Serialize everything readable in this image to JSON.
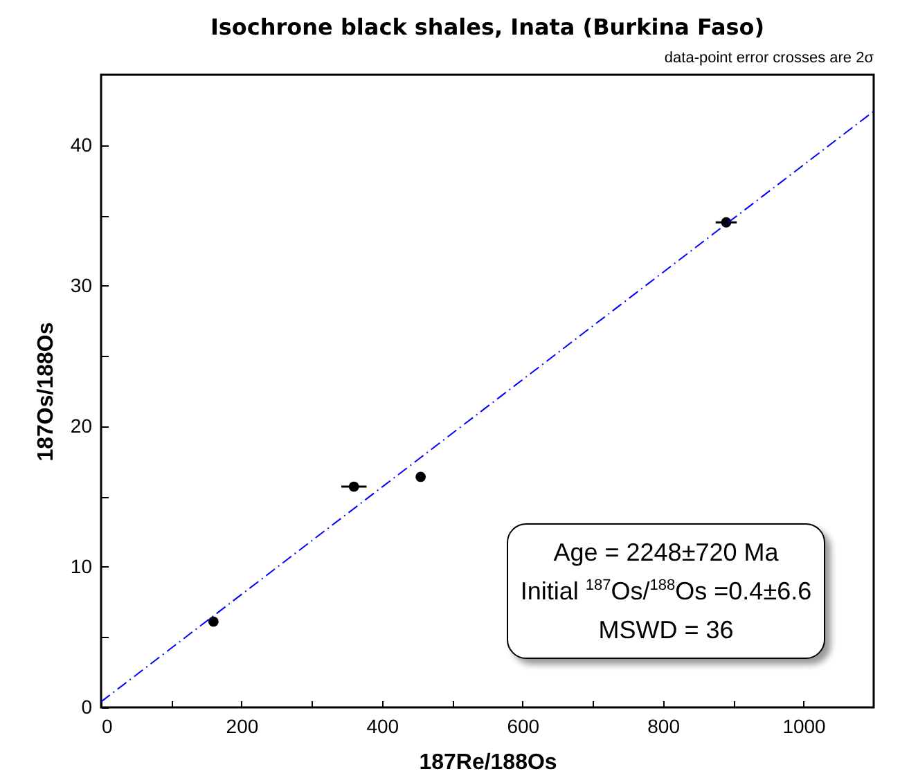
{
  "chart_data": {
    "type": "scatter",
    "title": "Isochrone black shales, Inata (Burkina Faso)",
    "xlabel": "187Re/188Os",
    "ylabel": "187Os/188Os",
    "annotations": [
      "data-point error crosses are 2σ",
      "Age = 2248±720 Ma",
      "Initial $^{187}$Os/$^{188}$Os =0.4±6.6",
      "MSWD = 36"
    ],
    "xlim": [
      0,
      1100
    ],
    "ylim": [
      0,
      45
    ],
    "xticks": [
      0,
      {
        "value": 100,
        "label": null
      },
      200,
      {
        "value": 300,
        "label": null
      },
      400,
      {
        "value": 500,
        "label": null
      },
      600,
      {
        "value": 700,
        "label": null
      },
      800,
      {
        "value": 900,
        "label": null
      },
      1000
    ],
    "yticks": [
      0,
      {
        "value": 5,
        "label": null
      },
      10,
      {
        "value": 15,
        "label": null
      },
      20,
      {
        "value": 25,
        "label": null
      },
      30,
      {
        "value": 35,
        "label": null
      },
      40
    ],
    "grid": false,
    "series": [
      {
        "color": "#000000",
        "marker": "circle",
        "x": [
          160,
          360,
          455,
          890
        ],
        "values": [
          6.1,
          15.7,
          16.4,
          34.5
        ],
        "xerrors": [
          5,
          18,
          6,
          15
        ]
      },
      {
        "type": "line",
        "color": "#0000ff",
        "line_style": "dashed",
        "marker": "none",
        "x": [
          0,
          1100
        ],
        "values": [
          0.4,
          42.4
        ]
      }
    ]
  }
}
